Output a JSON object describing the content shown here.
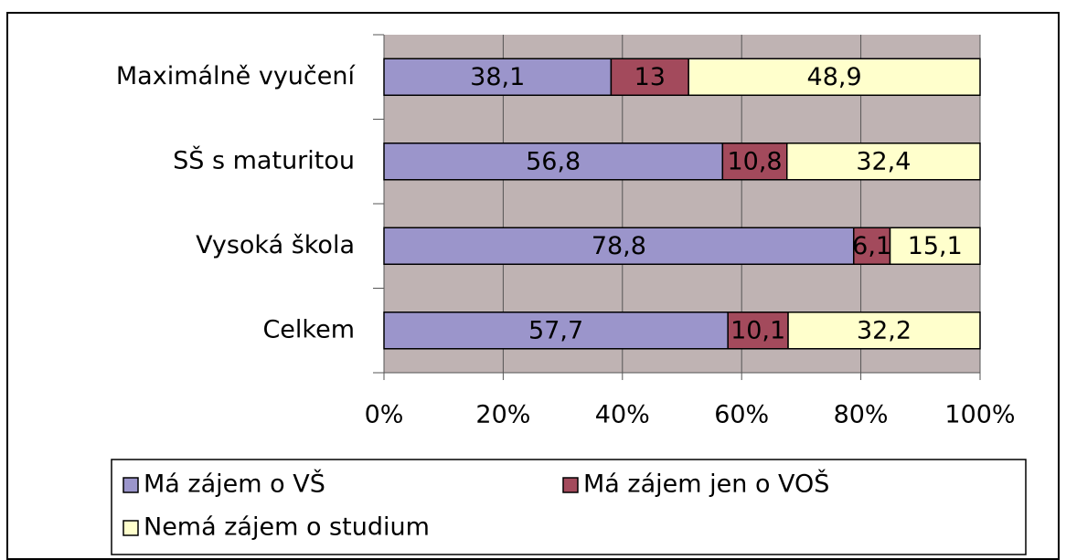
{
  "chart_data": {
    "type": "bar",
    "orientation": "horizontal",
    "stacked": "percent",
    "categories": [
      "Maximálně vyučení",
      "SŠ s maturitou",
      "Vysoká škola",
      "Celkem"
    ],
    "series": [
      {
        "name": "Má zájem o VŠ",
        "color": "#9b95cb",
        "values": [
          38.1,
          56.8,
          78.8,
          57.7
        ],
        "value_labels": [
          "38,1",
          "56,8",
          "78,8",
          "57,7"
        ]
      },
      {
        "name": "Má zájem jen o VOŠ",
        "color": "#a34a5c",
        "values": [
          13,
          10.8,
          6.1,
          10.1
        ],
        "value_labels": [
          "13",
          "10,8",
          "6,1",
          "10,1"
        ]
      },
      {
        "name": "Nemá zájem o studium",
        "color": "#ffffcc",
        "values": [
          48.9,
          32.4,
          15.1,
          32.2
        ],
        "value_labels": [
          "48,9",
          "32,4",
          "15,1",
          "32,2"
        ]
      }
    ],
    "xlim": [
      0,
      100
    ],
    "xticks": [
      {
        "value": 0,
        "label": "0%"
      },
      {
        "value": 20,
        "label": "20%"
      },
      {
        "value": 40,
        "label": "40%"
      },
      {
        "value": 60,
        "label": "60%"
      },
      {
        "value": 80,
        "label": "80%"
      },
      {
        "value": 100,
        "label": "100%"
      }
    ],
    "grid": true,
    "plot_background": "#bfb3b3",
    "legend": "bottom"
  }
}
